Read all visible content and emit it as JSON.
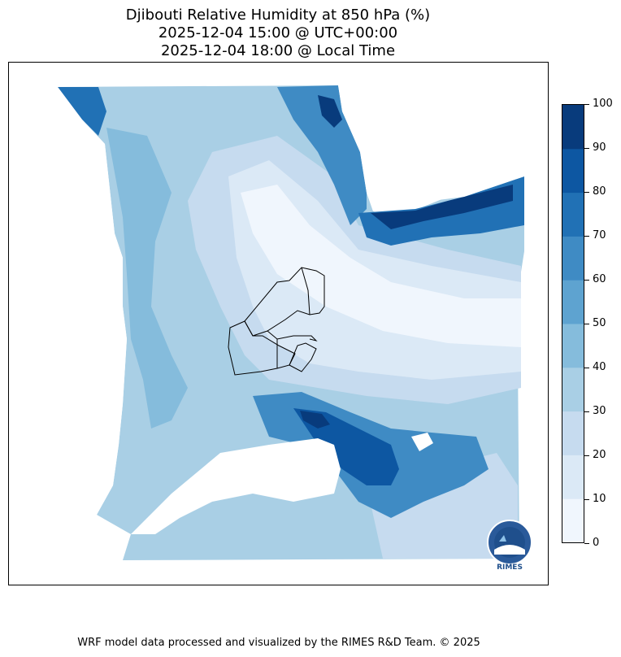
{
  "title": {
    "line1": "Djibouti Relative Humidity at 850 hPa (%)",
    "line2": "2025-12-04 15:00 @ UTC+00:00",
    "line3": "2025-12-04 18:00 @ Local Time"
  },
  "colorbar": {
    "levels": [
      0,
      10,
      20,
      30,
      40,
      50,
      60,
      70,
      80,
      90,
      100
    ],
    "labels": [
      "0",
      "10",
      "20",
      "30",
      "40",
      "50",
      "60",
      "70",
      "80",
      "90",
      "100"
    ],
    "colors": [
      "#f0f6fd",
      "#dbe9f6",
      "#c6dbef",
      "#a9cfe5",
      "#85bcdc",
      "#5ea3d0",
      "#3f8bc4",
      "#2171b5",
      "#0d57a2",
      "#083b7c"
    ]
  },
  "logo": {
    "text": "RIMES"
  },
  "footer": "WRF model data processed and visualized by the RIMES R&D Team. © 2025"
}
